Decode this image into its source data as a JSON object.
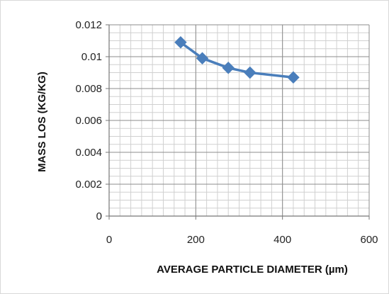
{
  "chart_data": {
    "type": "line",
    "title": "",
    "xlabel": "AVERAGE  PARTICLE  DIAMETER  (µm)",
    "ylabel": "MASS  LOS  (KG/KG)",
    "xlim": [
      0,
      600
    ],
    "ylim": [
      0,
      0.012
    ],
    "x_ticks": [
      "0",
      "200",
      "400",
      "600"
    ],
    "y_ticks": [
      "0",
      "0.002",
      "0.004",
      "0.006",
      "0.008",
      "0.01",
      "0.012"
    ],
    "grid": true,
    "legend": "none",
    "series": [
      {
        "color": "#4a7ebb",
        "marker": "diamond",
        "x": [
          165,
          215,
          275,
          325,
          425
        ],
        "y": [
          0.0109,
          0.0099,
          0.0093,
          0.009,
          0.0087
        ]
      }
    ]
  }
}
